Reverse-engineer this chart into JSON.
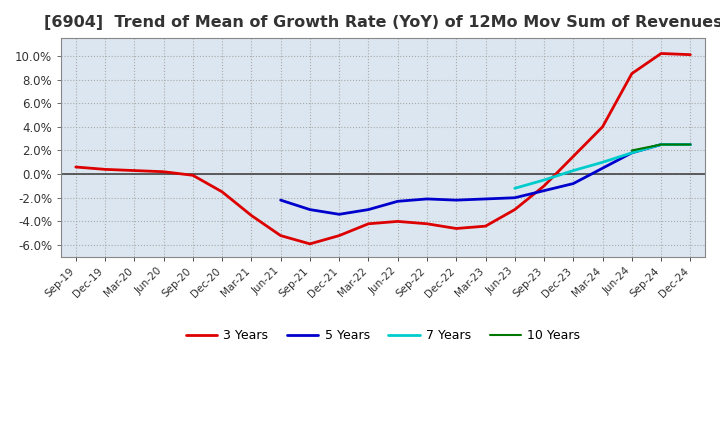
{
  "title": "[6904]  Trend of Mean of Growth Rate (YoY) of 12Mo Mov Sum of Revenues",
  "title_fontsize": 11.5,
  "title_color": "#333333",
  "background_color": "#ffffff",
  "plot_bg_color": "#dce6f0",
  "grid_color": "#aaaaaa",
  "ylim": [
    -0.07,
    0.115
  ],
  "yticks": [
    -0.06,
    -0.04,
    -0.02,
    0.0,
    0.02,
    0.04,
    0.06,
    0.08,
    0.1
  ],
  "legend_labels": [
    "3 Years",
    "5 Years",
    "7 Years",
    "10 Years"
  ],
  "legend_colors": [
    "#dd0000",
    "#0000cc",
    "#00cccc",
    "#007700"
  ],
  "x_labels": [
    "Sep-19",
    "Dec-19",
    "Mar-20",
    "Jun-20",
    "Sep-20",
    "Dec-20",
    "Mar-21",
    "Jun-21",
    "Sep-21",
    "Dec-21",
    "Mar-22",
    "Jun-22",
    "Sep-22",
    "Dec-22",
    "Mar-23",
    "Jun-23",
    "Sep-23",
    "Dec-23",
    "Mar-24",
    "Jun-24",
    "Sep-24",
    "Dec-24"
  ],
  "series_3y": [
    0.006,
    0.004,
    0.003,
    0.002,
    -0.001,
    -0.015,
    -0.035,
    -0.052,
    -0.059,
    -0.052,
    -0.042,
    -0.04,
    -0.042,
    -0.046,
    -0.044,
    -0.03,
    -0.01,
    0.015,
    0.04,
    0.085,
    0.102,
    0.101
  ],
  "series_5y": [
    null,
    null,
    null,
    null,
    null,
    null,
    null,
    -0.022,
    -0.03,
    -0.034,
    -0.03,
    -0.023,
    -0.021,
    -0.022,
    -0.021,
    -0.02,
    -0.014,
    -0.008,
    0.005,
    0.018,
    0.025,
    0.025
  ],
  "series_7y": [
    null,
    null,
    null,
    null,
    null,
    null,
    null,
    null,
    null,
    null,
    null,
    null,
    null,
    null,
    null,
    -0.012,
    -0.005,
    0.003,
    0.01,
    0.018,
    0.025,
    0.025
  ],
  "series_10y": [
    null,
    null,
    null,
    null,
    null,
    null,
    null,
    null,
    null,
    null,
    null,
    null,
    null,
    null,
    null,
    null,
    null,
    null,
    null,
    0.02,
    0.025,
    0.025
  ]
}
